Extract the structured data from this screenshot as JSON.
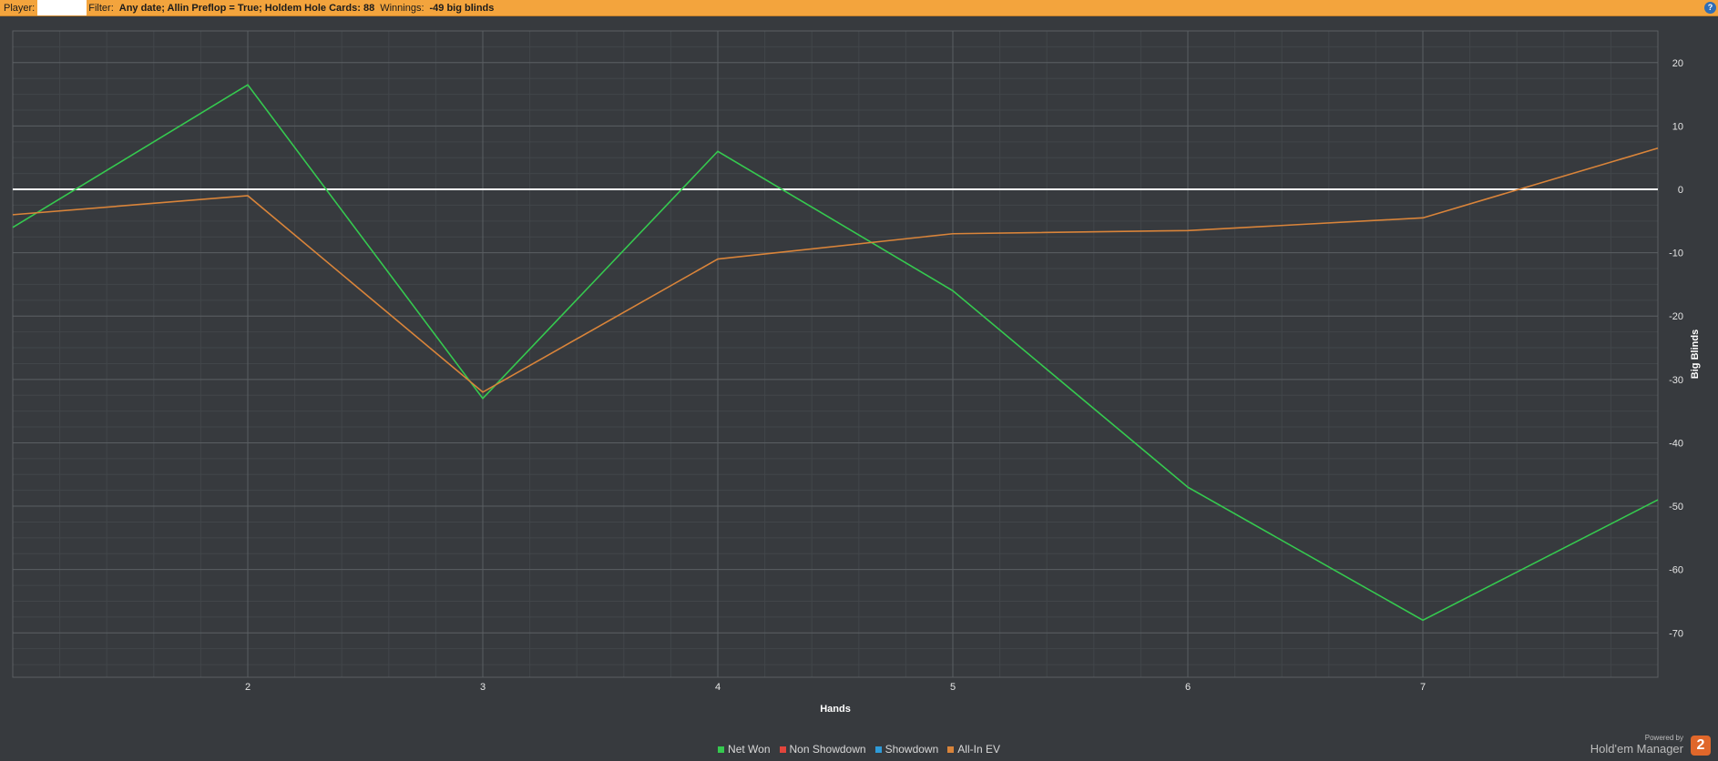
{
  "header": {
    "player_label": "Player:",
    "player_value": "",
    "filter_label": "Filter:",
    "filter_value": "Any date; Allin Preflop = True; Holdem Hole Cards: 88",
    "winnings_label": "Winnings:",
    "winnings_value": "-49 big blinds",
    "help_symbol": "?"
  },
  "chart_data": {
    "type": "line",
    "xlabel": "Hands",
    "ylabel": "Big Blinds",
    "xlim": [
      1,
      8
    ],
    "ylim": [
      -77,
      25
    ],
    "x_ticks": [
      2,
      3,
      4,
      5,
      6,
      7
    ],
    "y_ticks": [
      20,
      10,
      0,
      -10,
      -20,
      -30,
      -40,
      -50,
      -60,
      -70
    ],
    "grid": true,
    "legend_position": "bottom-center",
    "zero_line_color": "#ffffff",
    "series": [
      {
        "name": "Net Won",
        "color": "#35c94f",
        "x": [
          1,
          2,
          3,
          4,
          5,
          6,
          7,
          8
        ],
        "y": [
          -6,
          16.5,
          -33,
          6,
          -16,
          -47,
          -68,
          -49
        ]
      },
      {
        "name": "Non Showdown",
        "color": "#e2453c",
        "x": [],
        "y": []
      },
      {
        "name": "Showdown",
        "color": "#2e9bd9",
        "x": [],
        "y": []
      },
      {
        "name": "All-In EV",
        "color": "#d9843a",
        "x": [
          1,
          2,
          3,
          4,
          5,
          6,
          7,
          8
        ],
        "y": [
          -4,
          -1,
          -32,
          -11,
          -7,
          -6.5,
          -4.5,
          6.5
        ]
      }
    ]
  },
  "footer": {
    "powered_by": "Powered by",
    "product": "Hold'em Manager",
    "logo_text": "2"
  }
}
